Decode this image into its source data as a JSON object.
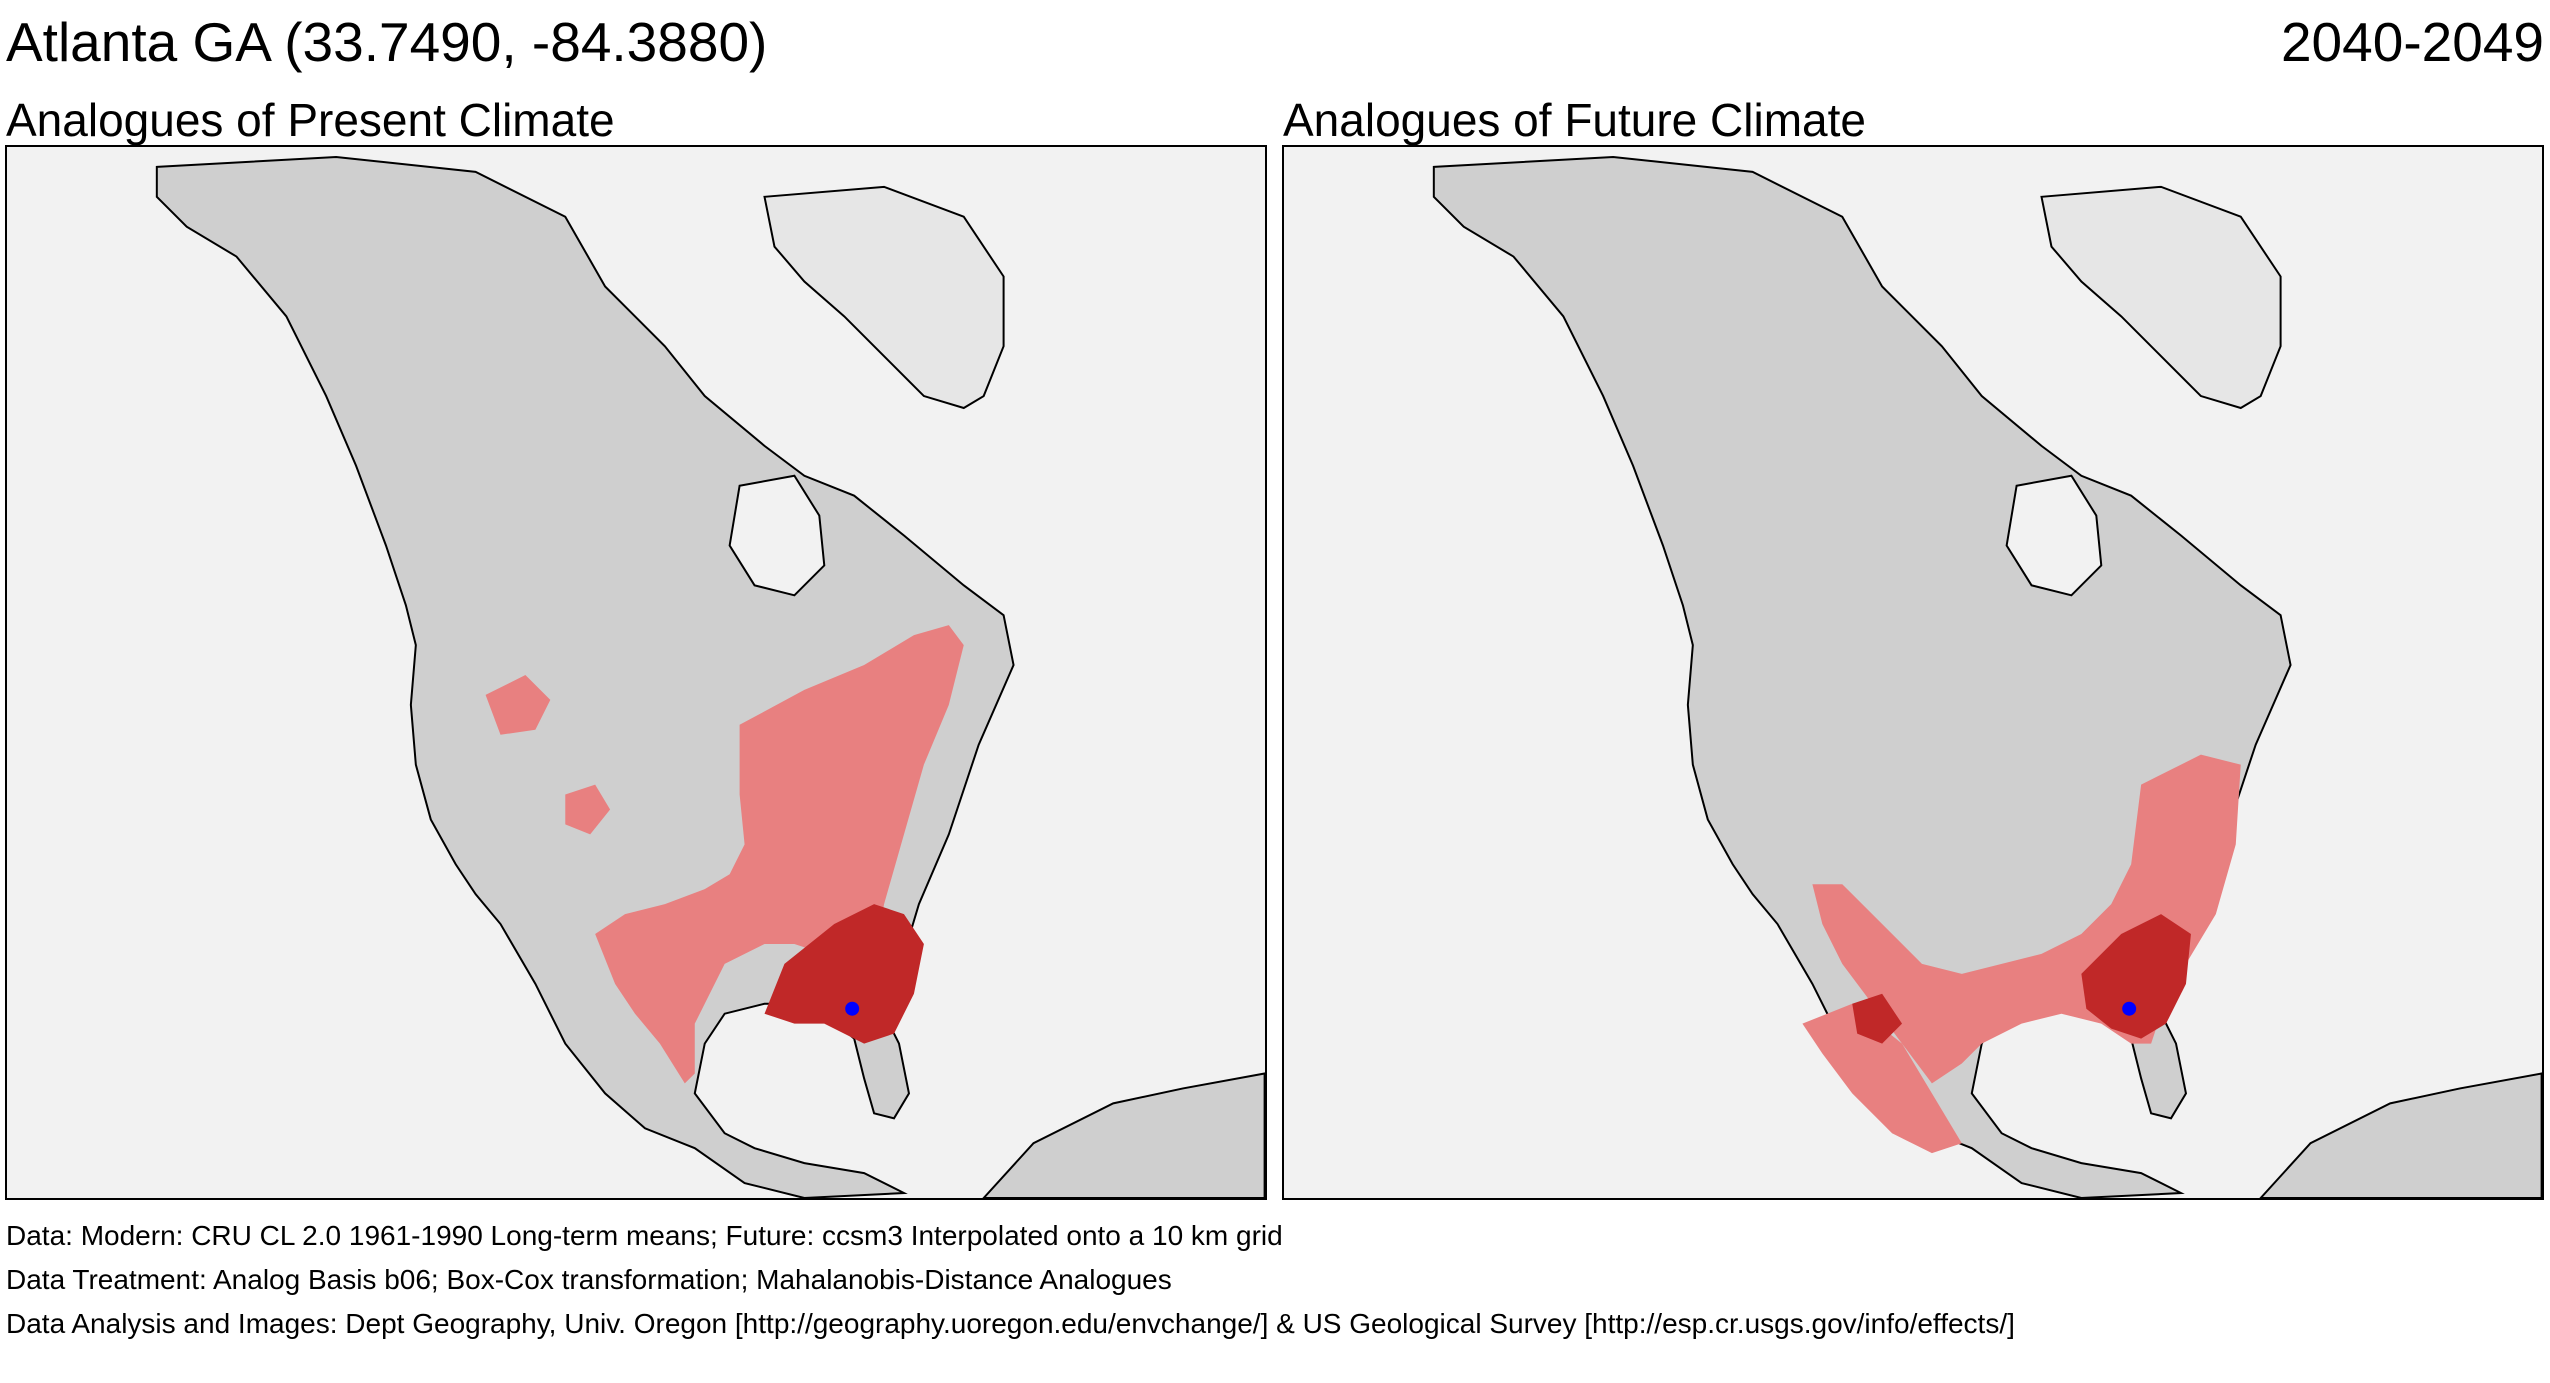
{
  "header": {
    "location": "Atlanta GA  (33.7490, -84.3880)",
    "period": "2040-2049"
  },
  "panels": [
    {
      "title": "Analogues of Present Climate"
    },
    {
      "title": "Analogues of Future Climate"
    }
  ],
  "captions": {
    "data": "Data:  Modern: CRU CL 2.0 1961-1990 Long-term means; Future: ccsm3 Interpolated onto a 10 km grid",
    "treatment": "Data Treatment:  Analog Basis b06; Box-Cox transformation; Mahalanobis-Distance Analogues",
    "analysis": "Data Analysis and Images:  Dept Geography, Univ. Oregon [http://geography.uoregon.edu/envchange/] & US Geological Survey [http://esp.cr.usgs.gov/info/effects/]"
  },
  "colors": {
    "ocean": "#f2f2f2",
    "land": "#cfcfcf",
    "greenland": "#e6e6e6",
    "analogue_light": "#e88080",
    "analogue_dark": "#c02828",
    "site_marker": "#0000ff"
  },
  "map": {
    "site": {
      "name": "Atlanta GA",
      "lat": 33.749,
      "lon": -84.388
    }
  }
}
